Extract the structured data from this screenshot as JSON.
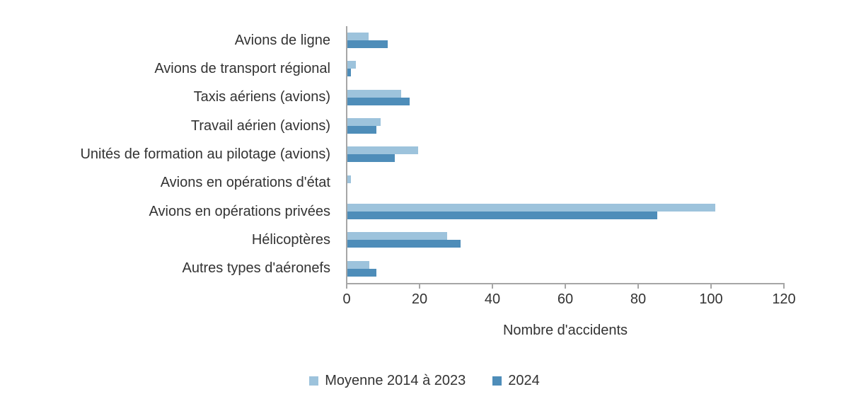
{
  "chart_data": {
    "type": "bar",
    "orientation": "horizontal",
    "xlabel": "Nombre d'accidents",
    "xlim": [
      0,
      120
    ],
    "xticks": [
      0,
      20,
      40,
      60,
      80,
      100,
      120
    ],
    "grid": false,
    "legend_position": "bottom-center",
    "categories": [
      "Avions de ligne",
      "Avions de transport régional",
      "Taxis aériens (avions)",
      "Travail aérien (avions)",
      "Unités de formation au pilotage (avions)",
      "Avions en opérations d'état",
      "Avions en opérations privées",
      "Hélicoptères",
      "Autres types d'aéronefs"
    ],
    "series": [
      {
        "name": "Moyenne 2014 à 2023",
        "color": "#9DC3DC",
        "values": [
          5.8,
          2.4,
          14.7,
          9.1,
          19.5,
          1.0,
          101,
          27.3,
          6.0
        ]
      },
      {
        "name": "2024",
        "color": "#4E8DB9",
        "values": [
          11,
          1,
          17,
          8,
          13,
          0,
          85,
          31,
          8
        ]
      }
    ],
    "colors": {
      "axis": "#A6A6A6",
      "text": "#333333"
    }
  }
}
